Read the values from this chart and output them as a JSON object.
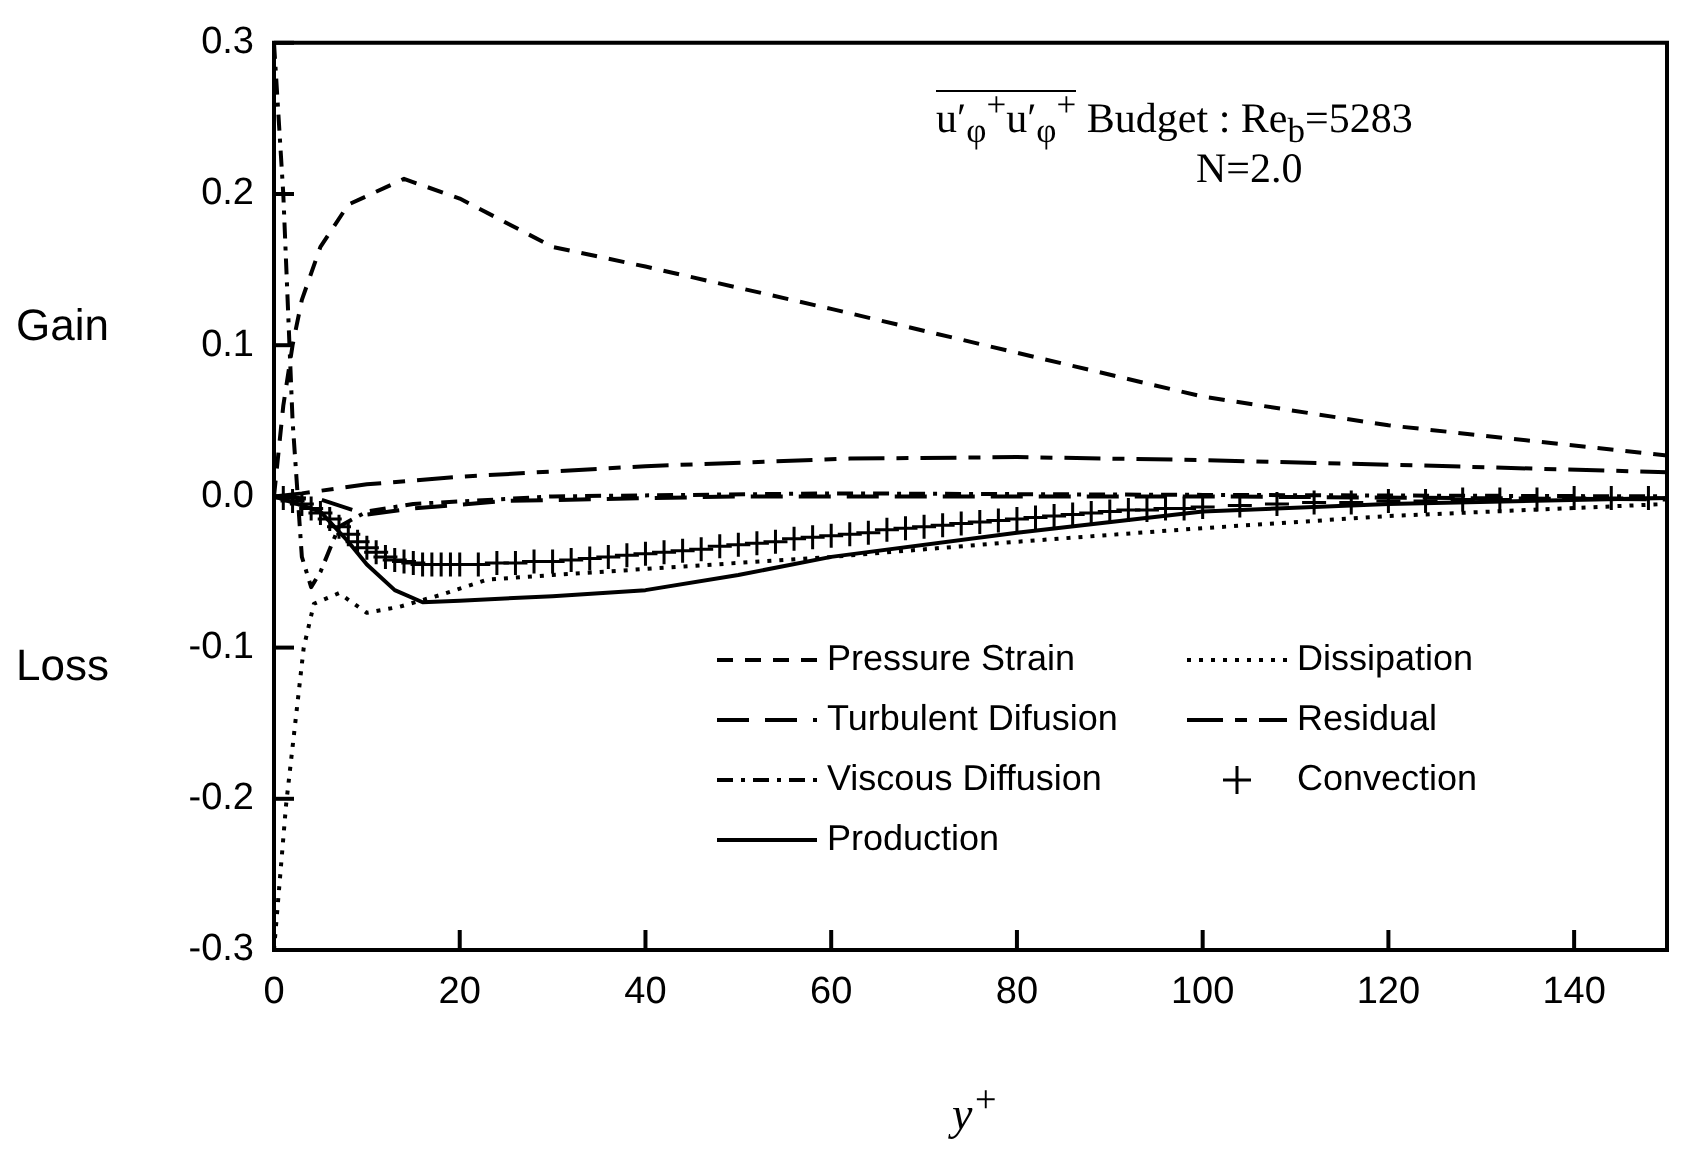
{
  "chart_data": {
    "type": "line",
    "xlabel": "y$^{+}$",
    "annotations": [
      "u′$_{φ}$$^{+}$u′$_{φ}$$^{+}$ Budget : Re$_{b}$=5283",
      "N=2.0",
      "Gain",
      "Loss"
    ],
    "xlim": [
      0,
      150
    ],
    "xticks": [
      0,
      20,
      40,
      60,
      80,
      100,
      120,
      140
    ],
    "ylim": [
      -0.3,
      0.3
    ],
    "yticks": [
      -0.3,
      -0.2,
      -0.1,
      {
        "value": 0,
        "label": "0.0"
      },
      0.1,
      0.2,
      0.3
    ],
    "grid": false,
    "legend": "bottom right",
    "series": [
      {
        "name": "Pressure Strain",
        "color": "#000000",
        "line_style": "dashed",
        "x": [
          0,
          1,
          2,
          3,
          5,
          8,
          14,
          20,
          30,
          40,
          60,
          80,
          100,
          120,
          150
        ],
        "values": [
          0.0,
          0.06,
          0.1,
          0.13,
          0.165,
          0.193,
          0.21,
          0.197,
          0.165,
          0.152,
          0.124,
          0.095,
          0.066,
          0.047,
          0.027
        ]
      },
      {
        "name": "Dissipation",
        "color": "#000000",
        "line_style": "dotted",
        "x": [
          0,
          1.3,
          3.2,
          4.3,
          7,
          10,
          13.5,
          18,
          23,
          30,
          40,
          60,
          80,
          100,
          120,
          150
        ],
        "values": [
          -0.3,
          -0.204,
          -0.1,
          -0.071,
          -0.064,
          -0.077,
          -0.073,
          -0.065,
          -0.055,
          -0.052,
          -0.048,
          -0.04,
          -0.03,
          -0.021,
          -0.013,
          -0.005
        ]
      },
      {
        "name": "Turbulent Difusion",
        "color": "#000000",
        "line_style": "longdash",
        "x": [
          0,
          5,
          10,
          15,
          25,
          50,
          100,
          150
        ],
        "values": [
          0.0,
          -0.002,
          -0.012,
          -0.008,
          -0.003,
          0.0,
          0.0,
          -0.002
        ]
      },
      {
        "name": "Residual",
        "color": "#000000",
        "line_style": "longdashdot",
        "x": [
          0,
          3,
          10,
          20,
          40,
          62,
          80,
          100,
          120,
          150
        ],
        "values": [
          0.0,
          0.002,
          0.008,
          0.013,
          0.02,
          0.025,
          0.026,
          0.024,
          0.021,
          0.016
        ]
      },
      {
        "name": "Viscous Diffusion",
        "color": "#000000",
        "line_style": "dashdot",
        "x": [
          0,
          1,
          2,
          3,
          4,
          5,
          7,
          10,
          15,
          30,
          60,
          100,
          150
        ],
        "values": [
          0.3,
          0.2,
          0.05,
          -0.04,
          -0.06,
          -0.05,
          -0.02,
          -0.01,
          -0.005,
          0.0,
          0.002,
          0.001,
          0.0
        ]
      },
      {
        "name": "Convection",
        "color": "#000000",
        "type": "scatter",
        "marker": "cross",
        "x": [
          1,
          2,
          3,
          4,
          5,
          6,
          7,
          8,
          9,
          10,
          11,
          12,
          13,
          14,
          15,
          16,
          17,
          18,
          19,
          20,
          22,
          24,
          26,
          28,
          30,
          32,
          34,
          36,
          38,
          40,
          42,
          44,
          46,
          48,
          50,
          52,
          54,
          56,
          58,
          60,
          62,
          64,
          66,
          68,
          70,
          72,
          74,
          76,
          78,
          80,
          82,
          84,
          86,
          88,
          90,
          92,
          94,
          96,
          98,
          100,
          104,
          108,
          112,
          116,
          120,
          124,
          128,
          132,
          136,
          140,
          144,
          148
        ],
        "values": [
          -0.001,
          -0.003,
          -0.005,
          -0.008,
          -0.011,
          -0.015,
          -0.02,
          -0.025,
          -0.03,
          -0.034,
          -0.037,
          -0.04,
          -0.042,
          -0.043,
          -0.044,
          -0.045,
          -0.045,
          -0.045,
          -0.045,
          -0.045,
          -0.045,
          -0.044,
          -0.044,
          -0.043,
          -0.043,
          -0.042,
          -0.041,
          -0.04,
          -0.039,
          -0.038,
          -0.037,
          -0.036,
          -0.035,
          -0.033,
          -0.032,
          -0.031,
          -0.03,
          -0.028,
          -0.027,
          -0.026,
          -0.025,
          -0.024,
          -0.022,
          -0.021,
          -0.02,
          -0.019,
          -0.018,
          -0.017,
          -0.016,
          -0.015,
          -0.014,
          -0.013,
          -0.012,
          -0.011,
          -0.01,
          -0.009,
          -0.009,
          -0.008,
          -0.008,
          -0.007,
          -0.006,
          -0.005,
          -0.004,
          -0.004,
          -0.003,
          -0.003,
          -0.002,
          -0.002,
          -0.002,
          -0.001,
          -0.001,
          -0.001
        ]
      },
      {
        "name": "Production",
        "color": "#000000",
        "line_style": "solid",
        "x": [
          0,
          5,
          8,
          10,
          13,
          16,
          20,
          30,
          40,
          50,
          60,
          80,
          100,
          120,
          150
        ],
        "values": [
          0.0,
          -0.01,
          -0.03,
          -0.045,
          -0.062,
          -0.07,
          -0.069,
          -0.066,
          -0.062,
          -0.052,
          -0.04,
          -0.024,
          -0.01,
          -0.005,
          -0.001
        ]
      }
    ]
  }
}
